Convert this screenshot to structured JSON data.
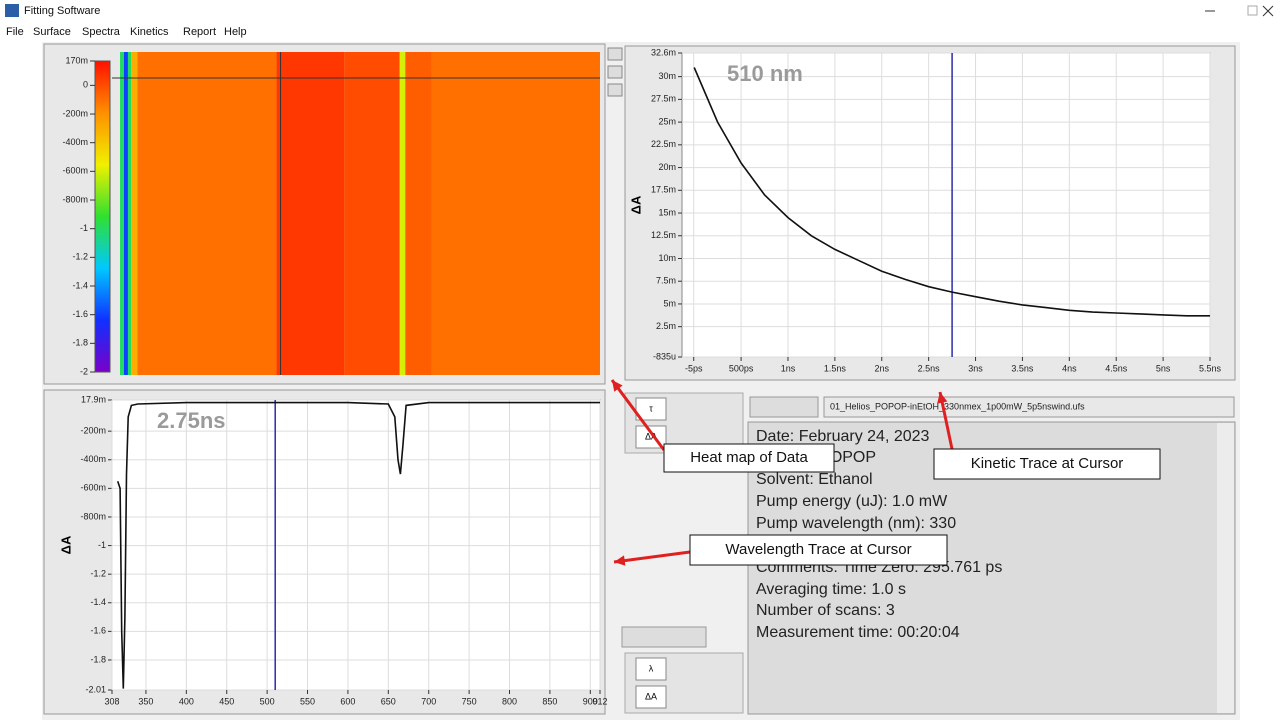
{
  "window": {
    "title": "Fitting Software"
  },
  "menu": [
    "File",
    "Surface",
    "Spectra",
    "Kinetics",
    "Report",
    "Help"
  ],
  "chart_data": [
    {
      "type": "heatmap",
      "x": [
        308,
        313,
        318,
        322,
        330,
        505,
        590,
        660,
        667,
        700
      ],
      "values": [
        -1.0,
        -1.6,
        -1.0,
        -0.3,
        -0.1,
        0.06,
        0.0,
        -0.6,
        -0.05,
        -0.1
      ],
      "xlim": [
        308,
        912
      ],
      "ylim": [
        -2,
        0.17
      ],
      "yticks": [
        {
          "value": 0.17,
          "label": "170m"
        },
        0,
        {
          "value": -0.2,
          "label": "-200m"
        },
        {
          "value": -0.4,
          "label": "-400m"
        },
        {
          "value": -0.6,
          "label": "-600m"
        },
        {
          "value": -0.8,
          "label": "-800m"
        },
        -1,
        -1.2,
        -1.4,
        -1.6,
        -1.8,
        -2
      ],
      "colormap": [
        "#7a00c8",
        "#1030ff",
        "#00c8ff",
        "#30e030",
        "#f0f000",
        "#ff9000",
        "#ff1000"
      ],
      "cursor_x": 510
    },
    {
      "type": "line",
      "annotation": "510 nm",
      "y_label": "ΔA",
      "x": [
        0,
        0.25,
        0.5,
        0.75,
        1,
        1.25,
        1.5,
        1.75,
        2,
        2.25,
        2.5,
        2.75,
        3,
        3.25,
        3.5,
        3.75,
        4,
        4.25,
        4.5,
        4.75,
        5,
        5.25,
        5.5
      ],
      "values": [
        0.031,
        0.025,
        0.0205,
        0.017,
        0.0145,
        0.0125,
        0.011,
        0.0098,
        0.0086,
        0.0077,
        0.0069,
        0.0063,
        0.0058,
        0.0053,
        0.0049,
        0.0046,
        0.0043,
        0.0041,
        0.004,
        0.0039,
        0.0038,
        0.0037,
        0.0037
      ],
      "color": "#111111",
      "cursor_x": 2.75,
      "cursor_color": "#2b2bb0",
      "xlim": [
        -0.13,
        5.5
      ],
      "xticks": [
        {
          "value": -0.005,
          "label": "-5ps"
        },
        {
          "value": 0.5,
          "label": "500ps"
        },
        {
          "value": 1,
          "label": "1ns"
        },
        {
          "value": 1.5,
          "label": "1.5ns"
        },
        {
          "value": 2,
          "label": "2ns"
        },
        {
          "value": 2.5,
          "label": "2.5ns"
        },
        {
          "value": 3,
          "label": "3ns"
        },
        {
          "value": 3.5,
          "label": "3.5ns"
        },
        {
          "value": 4,
          "label": "4ns"
        },
        {
          "value": 4.5,
          "label": "4.5ns"
        },
        {
          "value": 5,
          "label": "5ns"
        },
        {
          "value": 5.5,
          "label": "5.5ns"
        }
      ],
      "ylim": [
        -0.000835,
        0.0326
      ],
      "yticks": [
        {
          "value": -0.000835,
          "label": "-835u"
        },
        {
          "value": 0.0025,
          "label": "2.5m"
        },
        {
          "value": 0.005,
          "label": "5m"
        },
        {
          "value": 0.0075,
          "label": "7.5m"
        },
        {
          "value": 0.01,
          "label": "10m"
        },
        {
          "value": 0.0125,
          "label": "12.5m"
        },
        {
          "value": 0.015,
          "label": "15m"
        },
        {
          "value": 0.0175,
          "label": "17.5m"
        },
        {
          "value": 0.02,
          "label": "20m"
        },
        {
          "value": 0.0225,
          "label": "22.5m"
        },
        {
          "value": 0.025,
          "label": "25m"
        },
        {
          "value": 0.0275,
          "label": "27.5m"
        },
        {
          "value": 0.03,
          "label": "30m"
        },
        {
          "value": 0.0326,
          "label": "32.6m"
        }
      ],
      "grid": true
    },
    {
      "type": "line",
      "annotation": "2.75ns",
      "y_label": "ΔA",
      "x": [
        315,
        318,
        320,
        322,
        324,
        326,
        328,
        332,
        340,
        400,
        500,
        600,
        650,
        658,
        662,
        665,
        668,
        672,
        700,
        800,
        912
      ],
      "values": [
        -0.55,
        -0.6,
        -1.6,
        -2.0,
        -1.5,
        -0.5,
        -0.1,
        -0.02,
        -0.01,
        0,
        0,
        0,
        -0.01,
        -0.1,
        -0.4,
        -0.5,
        -0.3,
        -0.02,
        0,
        0,
        0
      ],
      "color": "#111111",
      "cursor_x": 510,
      "cursor_color": "#2b2bb0",
      "xlim": [
        308,
        912
      ],
      "xticks": [
        308,
        350,
        400,
        450,
        500,
        550,
        600,
        650,
        700,
        750,
        800,
        850,
        900,
        912
      ],
      "ylim": [
        -2.01,
        0.0179
      ],
      "yticks": [
        {
          "value": 0.0179,
          "label": "17.9m"
        },
        {
          "value": -0.2,
          "label": "-200m"
        },
        {
          "value": -0.4,
          "label": "-400m"
        },
        {
          "value": -0.6,
          "label": "-600m"
        },
        {
          "value": -0.8,
          "label": "-800m"
        },
        -1,
        -1.2,
        -1.4,
        -1.6,
        -1.8,
        -2.01
      ],
      "grid": true
    }
  ],
  "controls": {
    "kinetic": [
      "τ",
      "ΔA"
    ],
    "spectral": [
      "λ",
      "ΔA"
    ]
  },
  "file_name": "01_Helios_POPOP-inEtOH_330nmex_1p00mW_5p5nswind.ufs",
  "info_lines": [
    "Date: February 24, 2023",
    "Sample: POPOP",
    "Solvent: Ethanol",
    "Pump energy (uJ): 1.0 mW",
    "Pump wavelength (nm): 330",
    "Comments: Time Zero: 295.761 ps",
    "Averaging time: 1.0 s",
    "Number of scans: 3",
    "Measurement time: 00:20:04"
  ],
  "callouts": [
    "Heat map of Data",
    "Kinetic Trace at Cursor",
    "Wavelength Trace at Cursor"
  ]
}
